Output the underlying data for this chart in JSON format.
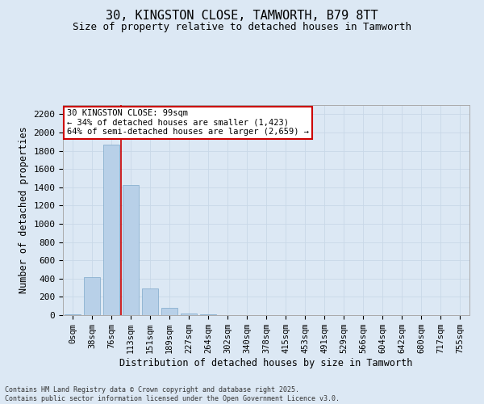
{
  "title_line1": "30, KINGSTON CLOSE, TAMWORTH, B79 8TT",
  "title_line2": "Size of property relative to detached houses in Tamworth",
  "xlabel": "Distribution of detached houses by size in Tamworth",
  "ylabel": "Number of detached properties",
  "footer_line1": "Contains HM Land Registry data © Crown copyright and database right 2025.",
  "footer_line2": "Contains public sector information licensed under the Open Government Licence v3.0.",
  "annotation_line1": "30 KINGSTON CLOSE: 99sqm",
  "annotation_line2": "← 34% of detached houses are smaller (1,423)",
  "annotation_line3": "64% of semi-detached houses are larger (2,659) →",
  "bar_categories": [
    "0sqm",
    "38sqm",
    "76sqm",
    "113sqm",
    "151sqm",
    "189sqm",
    "227sqm",
    "264sqm",
    "302sqm",
    "340sqm",
    "378sqm",
    "415sqm",
    "453sqm",
    "491sqm",
    "529sqm",
    "566sqm",
    "604sqm",
    "642sqm",
    "680sqm",
    "717sqm",
    "755sqm"
  ],
  "bar_values": [
    5,
    420,
    1870,
    1420,
    290,
    80,
    20,
    5,
    0,
    0,
    0,
    0,
    0,
    0,
    0,
    0,
    0,
    0,
    0,
    0,
    0
  ],
  "bar_color": "#b8d0e8",
  "bar_edgecolor": "#8ab0d0",
  "grid_color": "#c8d8e8",
  "background_color": "#dce8f4",
  "vline_x": 2.5,
  "vline_color": "#cc0000",
  "ylim": [
    0,
    2300
  ],
  "yticks": [
    0,
    200,
    400,
    600,
    800,
    1000,
    1200,
    1400,
    1600,
    1800,
    2000,
    2200
  ],
  "annotation_box_color": "#cc0000",
  "annotation_box_fill": "#ffffff",
  "title_fontsize": 11,
  "subtitle_fontsize": 9,
  "tick_fontsize": 7.5,
  "ytick_fontsize": 8,
  "label_fontsize": 8.5,
  "footer_fontsize": 6
}
